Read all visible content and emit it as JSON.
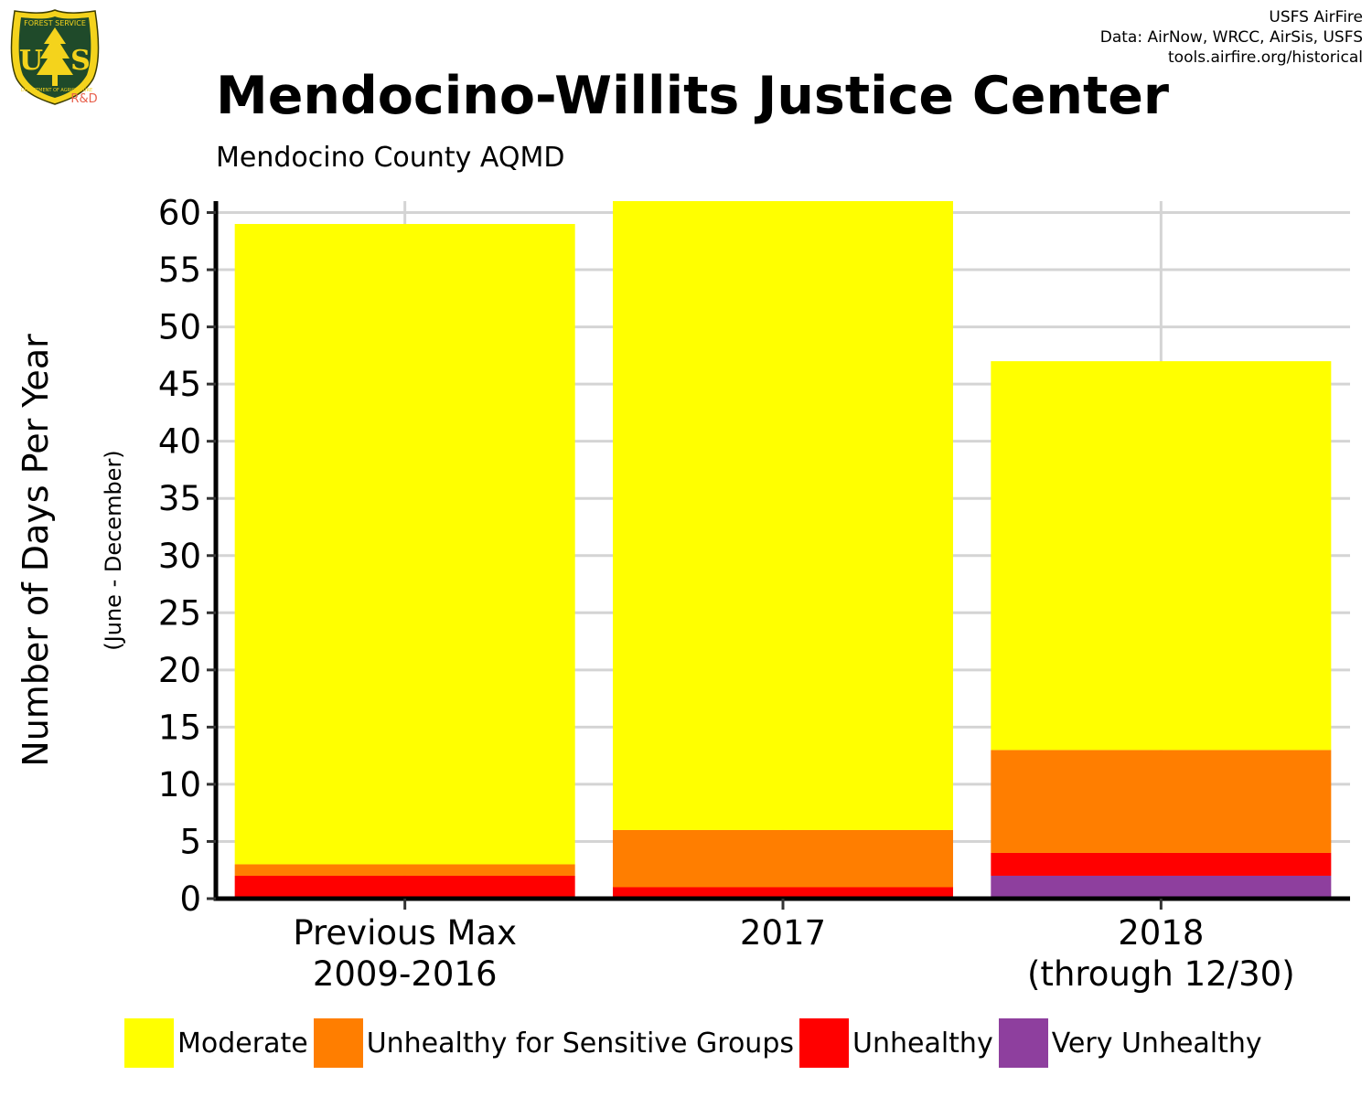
{
  "header": {
    "title": "Mendocino-Willits Justice Center",
    "subtitle": "Mendocino County AQMD",
    "credits": [
      "USFS AirFire",
      "Data: AirNow, WRCC, AirSis, USFS",
      "tools.airfire.org/historical"
    ]
  },
  "logo": {
    "icon": "usfs-shield-icon",
    "text_top": "FOREST SERVICE",
    "text_left": "U",
    "text_right": "S",
    "text_bottom": "DEPARTMENT OF AGRICULTURE",
    "badge": "R&D"
  },
  "chart_data": {
    "type": "bar",
    "stacked": true,
    "ylabel": "Number of Days Per Year",
    "ylabel_sub": "(June - December)",
    "xlabel": "",
    "ylim": [
      0,
      61
    ],
    "yticks": [
      0,
      5,
      10,
      15,
      20,
      25,
      30,
      35,
      40,
      45,
      50,
      55,
      60
    ],
    "grid": true,
    "legend_position": "bottom",
    "categories": [
      [
        "Previous Max",
        "2009-2016"
      ],
      [
        "2017"
      ],
      [
        "2018",
        "(through 12/30)"
      ]
    ],
    "series": [
      {
        "name": "Very Unhealthy",
        "color": "#8e3f9e",
        "values": [
          0,
          0,
          2
        ]
      },
      {
        "name": "Unhealthy",
        "color": "#ff0000",
        "values": [
          2,
          1,
          2
        ]
      },
      {
        "name": "Unhealthy for Sensitive Groups",
        "color": "#ff7e00",
        "values": [
          1,
          5,
          9
        ]
      },
      {
        "name": "Moderate",
        "color": "#ffff00",
        "values": [
          56,
          55,
          34
        ]
      }
    ],
    "legend_order": [
      "Moderate",
      "Unhealthy for Sensitive Groups",
      "Unhealthy",
      "Very Unhealthy"
    ]
  }
}
